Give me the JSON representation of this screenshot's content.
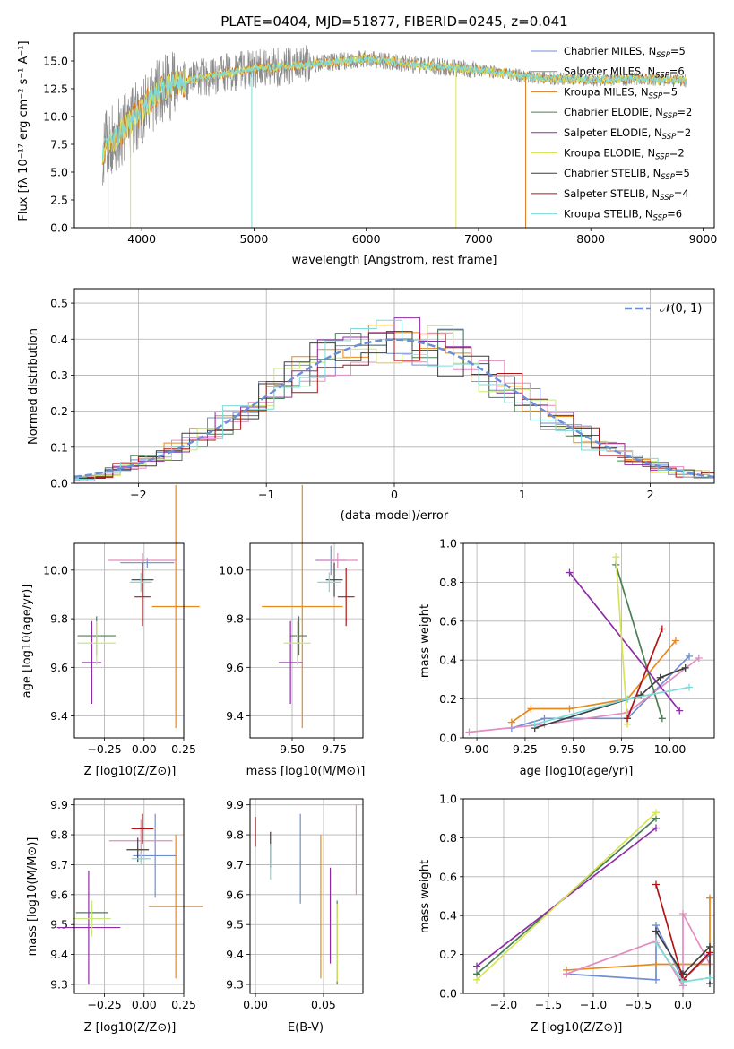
{
  "palette": [
    "#6f8fd0",
    "#e8891f",
    "#d9781f",
    "#4a7f55",
    "#8e2ca8",
    "#d8e35a",
    "#3e3e3e",
    "#b01414",
    "#7fdada",
    "#e38cc0",
    "#6a8f5f",
    "#c7e87a"
  ],
  "spectrum_panel": {
    "title": "PLATE=0404, MJD=51877, FIBERID=0245, z=0.041",
    "xlabel": "wavelength [Angstrom, rest frame]",
    "ylabel": "Flux [fλ 10⁻¹⁷ erg cm⁻² s⁻¹ A⁻¹]",
    "xlim": [
      3400,
      9100
    ],
    "ylim": [
      0,
      17.5
    ],
    "xticks": [
      4000,
      5000,
      6000,
      7000,
      8000,
      9000
    ],
    "yticks": [
      0.0,
      2.5,
      5.0,
      7.5,
      10.0,
      12.5,
      15.0
    ],
    "legend": [
      {
        "label": "Chabrier MILES, N_SSP=5",
        "color": "#6f8fd0"
      },
      {
        "label": "Salpeter MILES, N_SSP=6",
        "color": "#8a8a8a"
      },
      {
        "label": "Kroupa MILES, N_SSP=5",
        "color": "#d9781f"
      },
      {
        "label": "Chabrier ELODIE, N_SSP=2",
        "color": "#4a7f55"
      },
      {
        "label": "Salpeter ELODIE, N_SSP=2",
        "color": "#8e2ca8"
      },
      {
        "label": "Kroupa ELODIE, N_SSP=2",
        "color": "#d8e35a"
      },
      {
        "label": "Chabrier STELIB, N_SSP=5",
        "color": "#3e3e3e"
      },
      {
        "label": "Salpeter STELIB, N_SSP=4",
        "color": "#b01414"
      },
      {
        "label": "Kroupa STELIB, N_SSP=6",
        "color": "#7fdada"
      }
    ]
  },
  "chart_data": [
    {
      "type": "line",
      "id": "spectrum",
      "x_range": [
        3650,
        8850
      ],
      "continuum": [
        [
          3650,
          7.0
        ],
        [
          3800,
          8.5
        ],
        [
          3950,
          10.0
        ],
        [
          4100,
          11.8
        ],
        [
          4300,
          13.0
        ],
        [
          4600,
          13.6
        ],
        [
          5000,
          14.3
        ],
        [
          5500,
          14.7
        ],
        [
          6000,
          15.2
        ],
        [
          6500,
          14.6
        ],
        [
          7000,
          14.2
        ],
        [
          7500,
          13.5
        ],
        [
          8000,
          13.3
        ],
        [
          8500,
          13.4
        ],
        [
          8850,
          13.2
        ]
      ]
    },
    {
      "type": "bar",
      "id": "residual-hist",
      "xlabel": "(data-model)/error",
      "ylabel": "Normed distribution",
      "xlim": [
        -2.5,
        2.5
      ],
      "ylim": [
        0,
        0.54
      ],
      "xticks": [
        -2,
        -1,
        0,
        1,
        2
      ],
      "yticks": [
        0.0,
        0.1,
        0.2,
        0.3,
        0.4,
        0.5
      ],
      "gaussian_label": "𝒩(0, 1)",
      "bin_width": 0.2
    },
    {
      "type": "scatter",
      "id": "z-age",
      "xlabel": "Z [log10(Z/Z⊙)]",
      "ylabel": "age [log10(age/yr)]",
      "xlim": [
        -0.44,
        0.25
      ],
      "ylim": [
        9.31,
        10.11
      ],
      "xticks": [
        -0.25,
        0.0,
        0.25
      ],
      "yticks": [
        9.4,
        9.6,
        9.8,
        10.0
      ],
      "points": [
        {
          "x": 0.02,
          "y": 10.03,
          "xe": 0.17,
          "ye": 0.02,
          "c": "#6f8fd0"
        },
        {
          "x": 0.2,
          "y": 9.85,
          "xe": 0.15,
          "ye": 0.5,
          "c": "#e8891f"
        },
        {
          "x": -0.01,
          "y": 10.04,
          "xe": 0.22,
          "ye": 0.03,
          "c": "#e38cc0"
        },
        {
          "x": -0.3,
          "y": 9.73,
          "xe": 0.12,
          "ye": 0.08,
          "c": "#4a7f55"
        },
        {
          "x": -0.33,
          "y": 9.62,
          "xe": 0.06,
          "ye": 0.17,
          "c": "#8e2ca8"
        },
        {
          "x": -0.3,
          "y": 9.7,
          "xe": 0.12,
          "ye": 0.09,
          "c": "#c7e87a"
        },
        {
          "x": -0.01,
          "y": 9.96,
          "xe": 0.07,
          "ye": 0.07,
          "c": "#3e3e3e"
        },
        {
          "x": -0.01,
          "y": 9.89,
          "xe": 0.05,
          "ye": 0.12,
          "c": "#b01414"
        },
        {
          "x": -0.02,
          "y": 9.95,
          "xe": 0.07,
          "ye": 0.04,
          "c": "#7fdada"
        }
      ]
    },
    {
      "type": "scatter",
      "id": "mass-age",
      "xlabel": "mass [log10(M/M⊙)]",
      "ylabel": "",
      "xlim": [
        9.25,
        9.92
      ],
      "ylim": [
        9.31,
        10.11
      ],
      "xticks": [
        9.5,
        9.75
      ],
      "yticks": [
        9.4,
        9.6,
        9.8,
        10.0
      ],
      "points": [
        {
          "x": 9.73,
          "y": 10.04,
          "xe": 0.09,
          "ye": 0.06,
          "c": "#6f8fd0"
        },
        {
          "x": 9.56,
          "y": 9.85,
          "xe": 0.24,
          "ye": 0.5,
          "c": "#e8891f"
        },
        {
          "x": 9.77,
          "y": 10.04,
          "xe": 0.12,
          "ye": 0.03,
          "c": "#e38cc0"
        },
        {
          "x": 9.54,
          "y": 9.73,
          "xe": 0.05,
          "ye": 0.08,
          "c": "#4a7f55"
        },
        {
          "x": 9.49,
          "y": 9.62,
          "xe": 0.07,
          "ye": 0.17,
          "c": "#8e2ca8"
        },
        {
          "x": 9.53,
          "y": 9.7,
          "xe": 0.08,
          "ye": 0.09,
          "c": "#c7e87a"
        },
        {
          "x": 9.75,
          "y": 9.96,
          "xe": 0.05,
          "ye": 0.07,
          "c": "#3e3e3e"
        },
        {
          "x": 9.82,
          "y": 9.89,
          "xe": 0.05,
          "ye": 0.12,
          "c": "#b01414"
        },
        {
          "x": 9.72,
          "y": 9.95,
          "xe": 0.07,
          "ye": 0.04,
          "c": "#7fdada"
        }
      ]
    },
    {
      "type": "line",
      "id": "age-weight",
      "xlabel": "age [log10(age/yr)]",
      "ylabel": "mass weight",
      "xlim": [
        8.93,
        10.23
      ],
      "ylim": [
        0,
        1.0
      ],
      "xticks": [
        9.0,
        9.25,
        9.5,
        9.75,
        10.0
      ],
      "yticks": [
        0.0,
        0.2,
        0.4,
        0.6,
        0.8,
        1.0
      ],
      "series": [
        {
          "c": "#6f8fd0",
          "pts": [
            [
              9.18,
              0.05
            ],
            [
              9.35,
              0.1
            ],
            [
              9.78,
              0.1
            ],
            [
              10.1,
              0.42
            ]
          ]
        },
        {
          "c": "#e8891f",
          "pts": [
            [
              9.18,
              0.08
            ],
            [
              9.28,
              0.15
            ],
            [
              9.48,
              0.15
            ],
            [
              9.78,
              0.2
            ],
            [
              10.03,
              0.5
            ]
          ]
        },
        {
          "c": "#e38cc0",
          "pts": [
            [
              8.96,
              0.03
            ],
            [
              9.35,
              0.07
            ],
            [
              9.78,
              0.13
            ],
            [
              10.15,
              0.41
            ]
          ]
        },
        {
          "c": "#4a7f55",
          "pts": [
            [
              9.72,
              0.89
            ],
            [
              9.96,
              0.1
            ]
          ]
        },
        {
          "c": "#8e2ca8",
          "pts": [
            [
              9.48,
              0.85
            ],
            [
              10.05,
              0.14
            ]
          ]
        },
        {
          "c": "#d8e35a",
          "pts": [
            [
              9.72,
              0.93
            ],
            [
              9.78,
              0.07
            ]
          ]
        },
        {
          "c": "#3e3e3e",
          "pts": [
            [
              9.3,
              0.05
            ],
            [
              9.85,
              0.22
            ],
            [
              9.95,
              0.31
            ],
            [
              10.08,
              0.36
            ]
          ]
        },
        {
          "c": "#b01414",
          "pts": [
            [
              9.78,
              0.1
            ],
            [
              9.96,
              0.56
            ]
          ]
        },
        {
          "c": "#7fdada",
          "pts": [
            [
              9.3,
              0.07
            ],
            [
              9.78,
              0.2
            ],
            [
              10.1,
              0.26
            ]
          ]
        }
      ]
    },
    {
      "type": "scatter",
      "id": "z-mass",
      "xlabel": "Z [log10(Z/Z⊙)]",
      "ylabel": "mass [log10(M/M⊙)]",
      "xlim": [
        -0.44,
        0.25
      ],
      "ylim": [
        9.27,
        9.92
      ],
      "xticks": [
        -0.25,
        0.0,
        0.25
      ],
      "yticks": [
        9.3,
        9.4,
        9.5,
        9.6,
        9.7,
        9.8,
        9.9
      ],
      "points": [
        {
          "x": 0.07,
          "y": 9.73,
          "xe": 0.14,
          "ye": 0.14,
          "c": "#6f8fd0"
        },
        {
          "x": 0.2,
          "y": 9.56,
          "xe": 0.17,
          "ye": 0.24,
          "c": "#e8891f"
        },
        {
          "x": -0.02,
          "y": 9.78,
          "xe": 0.2,
          "ye": 0.07,
          "c": "#e38cc0"
        },
        {
          "x": -0.33,
          "y": 9.54,
          "xe": 0.1,
          "ye": 0.04,
          "c": "#4a7f55"
        },
        {
          "x": -0.35,
          "y": 9.49,
          "xe": 0.2,
          "ye": 0.19,
          "c": "#8e2ca8"
        },
        {
          "x": -0.33,
          "y": 9.52,
          "xe": 0.12,
          "ye": 0.06,
          "c": "#c7e87a"
        },
        {
          "x": -0.04,
          "y": 9.75,
          "xe": 0.07,
          "ye": 0.04,
          "c": "#3e3e3e"
        },
        {
          "x": -0.01,
          "y": 9.82,
          "xe": 0.07,
          "ye": 0.05,
          "c": "#b01414"
        },
        {
          "x": -0.02,
          "y": 9.72,
          "xe": 0.06,
          "ye": 0.02,
          "c": "#7fdada"
        }
      ]
    },
    {
      "type": "scatter",
      "id": "ebv-mass",
      "xlabel": "E(B-V)",
      "ylabel": "",
      "xlim": [
        -0.004,
        0.079
      ],
      "ylim": [
        9.27,
        9.92
      ],
      "xticks": [
        0.0,
        0.05
      ],
      "yticks": [
        9.3,
        9.4,
        9.5,
        9.6,
        9.7,
        9.8,
        9.9
      ],
      "points": [
        {
          "x": 0.033,
          "y": 9.72,
          "ye": 0.15,
          "c": "#6f8fd0"
        },
        {
          "x": 0.048,
          "y": 9.56,
          "ye": 0.24,
          "c": "#e8891f"
        },
        {
          "x": 0.074,
          "y": 9.75,
          "ye": 0.15,
          "c": "#e38cc0"
        },
        {
          "x": 0.06,
          "y": 9.44,
          "ye": 0.14,
          "c": "#4a7f55"
        },
        {
          "x": 0.055,
          "y": 9.53,
          "ye": 0.16,
          "c": "#8e2ca8"
        },
        {
          "x": 0.06,
          "y": 9.44,
          "ye": 0.13,
          "c": "#d8e35a"
        },
        {
          "x": 0.011,
          "y": 9.75,
          "ye": 0.06,
          "c": "#3e3e3e"
        },
        {
          "x": 0.0,
          "y": 9.81,
          "ye": 0.05,
          "c": "#b01414"
        },
        {
          "x": 0.011,
          "y": 9.71,
          "ye": 0.06,
          "c": "#7fdada"
        }
      ]
    },
    {
      "type": "line",
      "id": "z-weight",
      "xlabel": "Z [log10(Z/Z⊙)]",
      "ylabel": "mass weight",
      "xlim": [
        -2.45,
        0.35
      ],
      "ylim": [
        0,
        1.0
      ],
      "xticks": [
        -2.0,
        -1.5,
        -1.0,
        -0.5,
        0.0
      ],
      "yticks": [
        0.0,
        0.2,
        0.4,
        0.6,
        0.8,
        1.0
      ],
      "series": [
        {
          "c": "#6f8fd0",
          "pts": [
            [
              -1.3,
              0.1
            ],
            [
              -0.3,
              0.07
            ],
            [
              -0.3,
              0.35
            ],
            [
              0.0,
              0.07
            ],
            [
              0.3,
              0.2
            ]
          ]
        },
        {
          "c": "#e8891f",
          "pts": [
            [
              -1.3,
              0.12
            ],
            [
              -0.3,
              0.15
            ],
            [
              0.3,
              0.15
            ],
            [
              0.3,
              0.49
            ]
          ]
        },
        {
          "c": "#e38cc0",
          "pts": [
            [
              -1.3,
              0.1
            ],
            [
              -0.3,
              0.27
            ],
            [
              0.0,
              0.04
            ],
            [
              0.0,
              0.41
            ],
            [
              0.3,
              0.15
            ]
          ]
        },
        {
          "c": "#4a7f55",
          "pts": [
            [
              -2.3,
              0.1
            ],
            [
              -0.3,
              0.9
            ]
          ]
        },
        {
          "c": "#8e2ca8",
          "pts": [
            [
              -2.3,
              0.14
            ],
            [
              -0.3,
              0.85
            ]
          ]
        },
        {
          "c": "#d8e35a",
          "pts": [
            [
              -2.3,
              0.07
            ],
            [
              -0.3,
              0.93
            ]
          ]
        },
        {
          "c": "#3e3e3e",
          "pts": [
            [
              -0.3,
              0.32
            ],
            [
              0.0,
              0.1
            ],
            [
              0.3,
              0.24
            ],
            [
              0.3,
              0.05
            ]
          ]
        },
        {
          "c": "#b01414",
          "pts": [
            [
              -0.3,
              0.56
            ],
            [
              0.0,
              0.07
            ],
            [
              0.3,
              0.21
            ]
          ]
        },
        {
          "c": "#7fdada",
          "pts": [
            [
              -0.3,
              0.26
            ],
            [
              0.0,
              0.06
            ],
            [
              0.3,
              0.08
            ]
          ]
        }
      ]
    }
  ]
}
